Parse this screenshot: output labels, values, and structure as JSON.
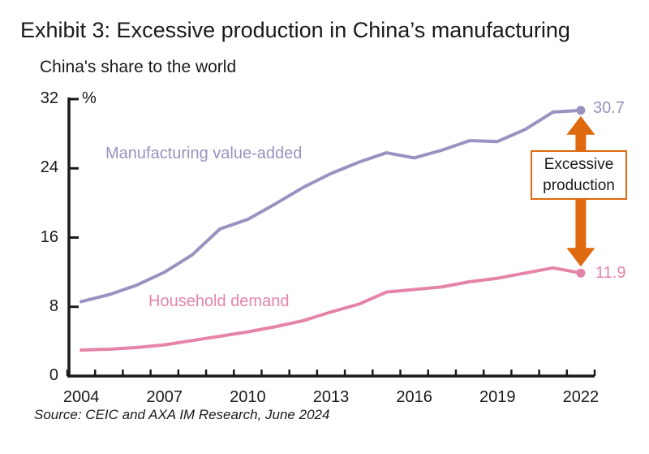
{
  "header": {
    "title": "Exhibit 3: Excessive production in China’s manufacturing",
    "subtitle": "China's share to the world"
  },
  "chart_data": {
    "type": "line",
    "title": "Exhibit 3: Excessive production in China’s manufacturing",
    "subtitle": "China's share to the world",
    "unit_label": "%",
    "grid": false,
    "legend_position": "inline",
    "x": [
      2004,
      2005,
      2006,
      2007,
      2008,
      2009,
      2010,
      2011,
      2012,
      2013,
      2014,
      2015,
      2016,
      2017,
      2018,
      2019,
      2020,
      2021,
      2022
    ],
    "series": [
      {
        "name": "Manufacturing value-added",
        "color": "#9a92c1",
        "values": [
          8.6,
          9.4,
          10.5,
          12.0,
          14.0,
          17.0,
          18.1,
          19.9,
          21.8,
          23.4,
          24.7,
          25.8,
          25.2,
          26.1,
          27.2,
          27.1,
          28.5,
          30.5,
          30.7
        ],
        "end_label": "30.7"
      },
      {
        "name": "Household demand",
        "color": "#e584a9",
        "values": [
          3.0,
          3.1,
          3.3,
          3.6,
          4.1,
          4.6,
          5.1,
          5.7,
          6.4,
          7.4,
          8.3,
          9.7,
          10.0,
          10.3,
          10.9,
          11.3,
          11.9,
          12.5,
          11.9
        ],
        "end_label": "11.9"
      }
    ],
    "y_axis": {
      "ticks": [
        0,
        8,
        16,
        24,
        32
      ],
      "range": [
        0,
        32
      ]
    },
    "x_axis": {
      "tick_years": [
        2004,
        2007,
        2010,
        2013,
        2016,
        2019,
        2022
      ]
    },
    "annotation": {
      "label": "Excessive production",
      "arrow_color": "#df690f"
    },
    "axis_color": "#1a1a1a"
  },
  "source": "Source: CEIC and AXA IM Research, June 2024"
}
